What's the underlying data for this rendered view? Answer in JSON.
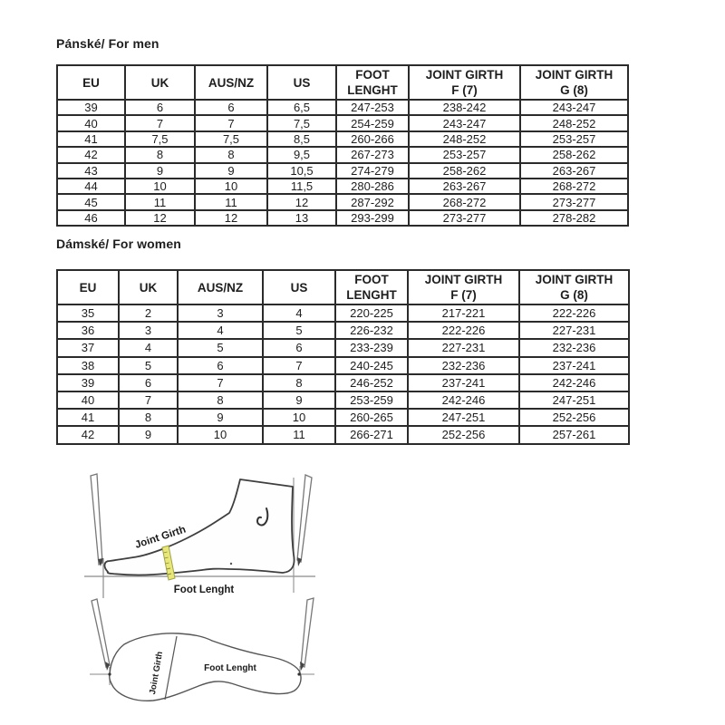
{
  "sections": {
    "men": {
      "title": "Pánské/ For men",
      "table": {
        "headers": [
          [
            "EU"
          ],
          [
            "UK"
          ],
          [
            "AUS/NZ"
          ],
          [
            "US"
          ],
          [
            "FOOT",
            "LENGHT"
          ],
          [
            "JOINT GIRTH",
            "F (7)"
          ],
          [
            "JOINT GIRTH",
            "G (8)"
          ]
        ],
        "rows": [
          [
            "39",
            "6",
            "6",
            "6,5",
            "247-253",
            "238-242",
            "243-247"
          ],
          [
            "40",
            "7",
            "7",
            "7,5",
            "254-259",
            "243-247",
            "248-252"
          ],
          [
            "41",
            "7,5",
            "7,5",
            "8,5",
            "260-266",
            "248-252",
            "253-257"
          ],
          [
            "42",
            "8",
            "8",
            "9,5",
            "267-273",
            "253-257",
            "258-262"
          ],
          [
            "43",
            "9",
            "9",
            "10,5",
            "274-279",
            "258-262",
            "263-267"
          ],
          [
            "44",
            "10",
            "10",
            "11,5",
            "280-286",
            "263-267",
            "268-272"
          ],
          [
            "45",
            "11",
            "11",
            "12",
            "287-292",
            "268-272",
            "273-277"
          ],
          [
            "46",
            "12",
            "12",
            "13",
            "293-299",
            "273-277",
            "278-282"
          ]
        ]
      }
    },
    "women": {
      "title": "Dámské/ For women",
      "table": {
        "headers": [
          [
            "EU"
          ],
          [
            "UK"
          ],
          [
            "AUS/NZ"
          ],
          [
            "US"
          ],
          [
            "FOOT",
            "LENGHT"
          ],
          [
            "JOINT GIRTH",
            "F (7)"
          ],
          [
            "JOINT GIRTH",
            "G (8)"
          ]
        ],
        "rows": [
          [
            "35",
            "2",
            "3",
            "4",
            "220-225",
            "217-221",
            "222-226"
          ],
          [
            "36",
            "3",
            "4",
            "5",
            "226-232",
            "222-226",
            "227-231"
          ],
          [
            "37",
            "4",
            "5",
            "6",
            "233-239",
            "227-231",
            "232-236"
          ],
          [
            "38",
            "5",
            "6",
            "7",
            "240-245",
            "232-236",
            "237-241"
          ],
          [
            "39",
            "6",
            "7",
            "8",
            "246-252",
            "237-241",
            "242-246"
          ],
          [
            "40",
            "7",
            "8",
            "9",
            "253-259",
            "242-246",
            "247-251"
          ],
          [
            "41",
            "8",
            "9",
            "10",
            "260-265",
            "247-251",
            "252-256"
          ],
          [
            "42",
            "9",
            "10",
            "11",
            "266-271",
            "252-256",
            "257-261"
          ]
        ]
      }
    }
  },
  "diagrams": {
    "side_view": {
      "joint_girth_label": "Joint Girth",
      "foot_length_label": "Foot Lenght"
    },
    "bottom_view": {
      "joint_girth_label": "Joint Girth",
      "foot_length_label": "Foot Lenght"
    }
  },
  "colors": {
    "text": "#1e1e1e",
    "table_border": "#2b2b2b",
    "diagram_line": "#4d4d4d",
    "tape_fill": "#e7e77c",
    "tape_stroke": "#a3a34a"
  }
}
